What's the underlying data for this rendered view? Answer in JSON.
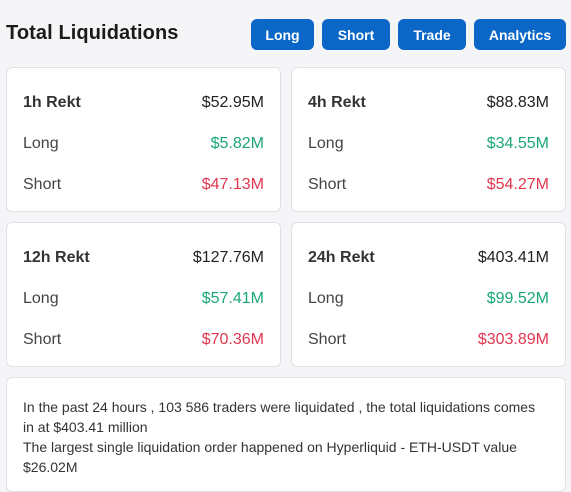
{
  "header": {
    "title": "Total Liquidations",
    "buttons": {
      "long": "Long",
      "short": "Short",
      "trade": "Trade",
      "analytics": "Analytics"
    }
  },
  "cards": [
    {
      "period": "1h Rekt",
      "total": "$52.95M",
      "long_label": "Long",
      "long": "$5.82M",
      "short_label": "Short",
      "short": "$47.13M"
    },
    {
      "period": "4h Rekt",
      "total": "$88.83M",
      "long_label": "Long",
      "long": "$34.55M",
      "short_label": "Short",
      "short": "$54.27M"
    },
    {
      "period": "12h Rekt",
      "total": "$127.76M",
      "long_label": "Long",
      "long": "$57.41M",
      "short_label": "Short",
      "short": "$70.36M"
    },
    {
      "period": "24h Rekt",
      "total": "$403.41M",
      "long_label": "Long",
      "long": "$99.52M",
      "short_label": "Short",
      "short": "$303.89M"
    }
  ],
  "summary": {
    "line1": "In the past 24 hours , 103 586 traders were liquidated , the total liquidations comes in at $403.41 million",
    "line2": "The largest single liquidation order happened on Hyperliquid - ETH-USDT value $26.02M"
  },
  "colors": {
    "accent": "#0a67c8",
    "long": "#1aa67a",
    "short": "#e0374f"
  }
}
